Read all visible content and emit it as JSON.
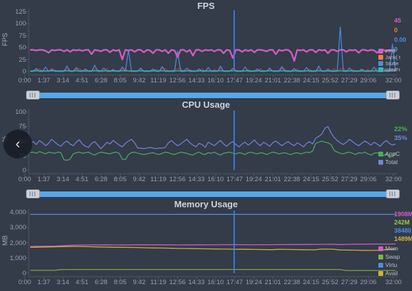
{
  "ui": {
    "back_glyph": "‹"
  },
  "colors": {
    "background": "#343b49",
    "axis": "#4b5468",
    "axis_minor": "#454d5f",
    "tick_text": "#99a1b0",
    "title_text": "#cdd3df",
    "cursor": "#3a7fe8",
    "slider_track": "#56a8ea",
    "slider_handle": "#cdd2da"
  },
  "chart_data": [
    {
      "type": "line",
      "title": "FPS",
      "ylabel": "FPS",
      "ylim": [
        0,
        125
      ],
      "yticks": [
        0,
        25,
        50,
        75,
        100,
        125
      ],
      "ytick_labels": [
        "0",
        "25",
        "50",
        "75",
        "100",
        "125"
      ],
      "x_labels": [
        "0:00",
        "1:37",
        "3:14",
        "4:51",
        "6:28",
        "8:05",
        "9:42",
        "11:19",
        "12:56",
        "14:33",
        "16:10",
        "17:47",
        "19:24",
        "21:01",
        "22:38",
        "24:15",
        "25:52",
        "27:29",
        "29:06",
        "32:00"
      ],
      "cursor_at": "17:47",
      "grid": false,
      "legend_position": "right",
      "readout": [
        {
          "value": "45",
          "color": "#d35fc4"
        },
        {
          "value": "0",
          "color": "#ef8432"
        },
        {
          "value": "0.00",
          "color": "#4a90e2"
        },
        {
          "value": "0",
          "color": "#35b8b4"
        }
      ],
      "legend": [
        {
          "label": "FPS",
          "color": "#d35fc4"
        },
        {
          "label": "Jank[ t",
          "color": "#ef8432"
        },
        {
          "label": "Stutte",
          "color": "#4a8ee8"
        },
        {
          "label": "InterFr",
          "color": "#35b8b4"
        }
      ],
      "series": [
        {
          "name": "Jank",
          "color": "#b5433a",
          "width": 1,
          "values": [
            0,
            0,
            4,
            5,
            0,
            0,
            0,
            6,
            3,
            0,
            0,
            0,
            5,
            0,
            0,
            4,
            6,
            0,
            0,
            0,
            0,
            5,
            4,
            0,
            0,
            6,
            0,
            0,
            0,
            0,
            4,
            6,
            0,
            0,
            0,
            0,
            5,
            0,
            0,
            0,
            0,
            4,
            0,
            5,
            6,
            0,
            0,
            4,
            5,
            6,
            0,
            0,
            4,
            0,
            0,
            0,
            5,
            0,
            0,
            0,
            4,
            0,
            6,
            0,
            0,
            0,
            5,
            3,
            0,
            0,
            0,
            4,
            0,
            0,
            0,
            6,
            0,
            0,
            5,
            0,
            0,
            0,
            6,
            4,
            0,
            0,
            0,
            5,
            0,
            0,
            0,
            4,
            0,
            0,
            5,
            0,
            0,
            0,
            0,
            6,
            0,
            5,
            6,
            0,
            0,
            4,
            0,
            0,
            0,
            0,
            4,
            0,
            0,
            6,
            0,
            0,
            0,
            4,
            5,
            0
          ]
        },
        {
          "name": "Stutter",
          "color": "#4a8ee8",
          "width": 1.2,
          "values": [
            0,
            0,
            6,
            0,
            0,
            9,
            0,
            4,
            0,
            0,
            0,
            0,
            11,
            0,
            0,
            8,
            0,
            0,
            5,
            0,
            0,
            13,
            0,
            0,
            7,
            0,
            0,
            4,
            0,
            0,
            9,
            0,
            45,
            0,
            0,
            0,
            7,
            0,
            0,
            0,
            5,
            0,
            0,
            10,
            0,
            0,
            0,
            0,
            43,
            0,
            0,
            7,
            0,
            0,
            0,
            5,
            0,
            0,
            8,
            0,
            0,
            0,
            11,
            0,
            0,
            0,
            6,
            0,
            0,
            0,
            9,
            0,
            0,
            0,
            5,
            0,
            0,
            0,
            7,
            0,
            0,
            0,
            10,
            0,
            0,
            0,
            6,
            0,
            0,
            0,
            8,
            0,
            0,
            0,
            11,
            0,
            0,
            5,
            0,
            0,
            0,
            93,
            0,
            0,
            7,
            0,
            0,
            0,
            5,
            0,
            0,
            0,
            9,
            0,
            0,
            6,
            0,
            0,
            57,
            0
          ]
        },
        {
          "name": "InterFrame",
          "color": "#38b8b2",
          "width": 1.4,
          "values": [
            1,
            1
          ]
        },
        {
          "name": "FPS",
          "color": "#cf5cc4",
          "width": 2.4,
          "values": [
            45,
            45,
            44,
            45,
            45,
            43,
            39,
            45,
            44,
            45,
            45,
            42,
            45,
            41,
            45,
            44,
            45,
            43,
            45,
            45,
            36,
            45,
            44,
            42,
            45,
            45,
            40,
            45,
            43,
            45,
            25,
            45,
            44,
            45,
            41,
            45,
            45,
            40,
            45,
            44,
            38,
            45,
            45,
            42,
            45,
            38,
            45,
            44,
            30,
            45,
            45,
            41,
            45,
            33,
            45,
            45,
            42,
            45,
            44,
            45,
            42,
            45,
            45,
            38,
            45,
            44,
            28,
            45,
            45,
            41,
            45,
            43,
            45,
            40,
            45,
            45,
            44,
            42,
            45,
            45,
            36,
            45,
            43,
            45,
            45,
            40,
            22,
            45,
            44,
            45,
            41,
            45,
            45,
            40,
            45,
            44,
            45,
            38,
            45,
            45,
            42,
            45,
            45,
            41,
            45,
            44,
            45,
            39,
            45,
            45,
            43,
            45,
            44,
            39,
            45,
            45,
            42,
            45,
            43,
            45
          ]
        }
      ]
    },
    {
      "type": "line",
      "title": "CPU Usage",
      "ylabel": "%",
      "ylim": [
        0,
        100
      ],
      "yticks": [
        0,
        25,
        50,
        75,
        100
      ],
      "ytick_labels": [
        "0",
        "25",
        "50",
        "75",
        "100"
      ],
      "x_labels": [
        "0:00",
        "1:37",
        "3:14",
        "4:51",
        "6:28",
        "8:05",
        "9:42",
        "11:19",
        "12:56",
        "14:33",
        "16:10",
        "17:47",
        "19:24",
        "21:01",
        "22:38",
        "24:15",
        "25:52",
        "27:29",
        "29:06",
        "32:00"
      ],
      "cursor_at": "17:47",
      "grid": false,
      "legend_position": "right",
      "readout": [
        {
          "value": "22%",
          "color": "#4db052"
        },
        {
          "value": "35%",
          "color": "#7286d8"
        }
      ],
      "legend": [
        {
          "label": "AppC",
          "color": "#4db052"
        },
        {
          "label": "Total",
          "color": "#7286d8"
        }
      ],
      "series": [
        {
          "name": "TotalCPU",
          "color": "#7181cf",
          "width": 1.3,
          "values": [
            46,
            49,
            44,
            51,
            47,
            42,
            46,
            53,
            48,
            44,
            41,
            47,
            50,
            45,
            42,
            48,
            52,
            45,
            41,
            39,
            46,
            49,
            43,
            37,
            42,
            48,
            45,
            51,
            47,
            43,
            40,
            46,
            50,
            53,
            47,
            38,
            38,
            37,
            38,
            39,
            38,
            37,
            38,
            38,
            39,
            47,
            51,
            46,
            42,
            45,
            49,
            53,
            47,
            43,
            40,
            46,
            44,
            39,
            48,
            45,
            42,
            47,
            51,
            45,
            41,
            46,
            49,
            44,
            40,
            45,
            48,
            43,
            47,
            52,
            46,
            42,
            48,
            45,
            41,
            47,
            50,
            46,
            42,
            46,
            49,
            45,
            42,
            47,
            44,
            40,
            46,
            49,
            45,
            55,
            58,
            62,
            72,
            75,
            64,
            56,
            51,
            47,
            44,
            48,
            53,
            49,
            45,
            42,
            46,
            50,
            47,
            43,
            48,
            45,
            41,
            47,
            51,
            46,
            43,
            45
          ]
        },
        {
          "name": "AppCPU",
          "color": "#4ea758",
          "width": 1.3,
          "values": [
            30,
            31,
            29,
            32,
            30,
            28,
            31,
            30,
            29,
            31,
            30,
            18,
            17,
            19,
            28,
            30,
            31,
            29,
            30,
            31,
            28,
            26,
            29,
            31,
            30,
            29,
            28,
            30,
            31,
            29,
            19,
            18,
            27,
            30,
            31,
            29,
            28,
            27,
            28,
            29,
            30,
            28,
            27,
            29,
            31,
            30,
            28,
            27,
            29,
            31,
            30,
            29,
            27,
            26,
            29,
            31,
            28,
            27,
            30,
            29,
            31,
            28,
            26,
            29,
            30,
            31,
            29,
            28,
            30,
            29,
            27,
            30,
            31,
            29,
            28,
            30,
            29,
            27,
            29,
            31,
            30,
            28,
            29,
            30,
            28,
            27,
            29,
            30,
            28,
            29,
            31,
            30,
            33,
            46,
            48,
            50,
            48,
            47,
            44,
            34,
            31,
            29,
            28,
            30,
            31,
            29,
            27,
            30,
            29,
            31,
            28,
            26,
            29,
            30,
            27,
            25,
            28,
            22,
            24,
            30
          ]
        }
      ]
    },
    {
      "type": "line",
      "title": "Memory Usage",
      "ylabel": "MB",
      "ylim": [
        0,
        4000
      ],
      "yticks": [
        0,
        1000,
        2000,
        3000,
        4000
      ],
      "ytick_labels": [
        "0",
        "1,000",
        "2,000",
        "3,000",
        "4,000"
      ],
      "x_labels": [
        "0:00",
        "1:37",
        "3:14",
        "4:51",
        "6:28",
        "8:05",
        "9:42",
        "11:19",
        "12:56",
        "14:33",
        "16:10",
        "17:47",
        "19:24",
        "21:01",
        "22:38",
        "24:15",
        "25:52",
        "27:29",
        "29:06",
        "32:00"
      ],
      "cursor_at": "17:47",
      "grid": false,
      "legend_position": "right",
      "readout": [
        {
          "value": "1908M",
          "color": "#d35fc4"
        },
        {
          "value": "242M",
          "color": "#9ccc3f"
        },
        {
          "value": "38480",
          "color": "#4a90e2"
        },
        {
          "value": "1489M",
          "color": "#d4b13c"
        }
      ],
      "legend": [
        {
          "label": "Mem",
          "color": "#d35fc4"
        },
        {
          "label": "Swap",
          "color": "#7cb83e"
        },
        {
          "label": "Virtu",
          "color": "#4a90e2"
        },
        {
          "label": "Avail",
          "color": "#d4b13c"
        }
      ],
      "series": [
        {
          "name": "VirtualMemory",
          "color": "#5b8fd8",
          "width": 1.3,
          "values": [
            3848,
            3848
          ]
        },
        {
          "name": "Memory",
          "color": "#c75fc0",
          "width": 1.3,
          "values": [
            1755,
            1758,
            1762,
            1768,
            1775,
            1795,
            1815,
            1828,
            1838,
            1845,
            1850,
            1852,
            1854,
            1851,
            1849,
            1850,
            1852,
            1855,
            1857,
            1859,
            1858,
            1856,
            1853,
            1851,
            1849,
            1851,
            1853,
            1856,
            1858,
            1860,
            1862,
            1864,
            1866,
            1869,
            1867,
            1864,
            1862,
            1861,
            1863,
            1866,
            1868,
            1870,
            1873,
            1875,
            1878,
            1880,
            1883,
            1886,
            1888,
            1890,
            1872,
            1882,
            1892,
            1896,
            1901,
            1905,
            1908,
            1906,
            1905,
            1908
          ]
        },
        {
          "name": "AvailMemory",
          "color": "#d1ae3c",
          "width": 1.3,
          "values": [
            1688,
            1698,
            1708,
            1718,
            1728,
            1738,
            1744,
            1750,
            1747,
            1739,
            1729,
            1719,
            1709,
            1699,
            1694,
            1689,
            1684,
            1679,
            1669,
            1659,
            1649,
            1644,
            1639,
            1629,
            1619,
            1614,
            1609,
            1599,
            1594,
            1589,
            1584,
            1579,
            1574,
            1569,
            1564,
            1559,
            1554,
            1549,
            1544,
            1539,
            1559,
            1554,
            1549,
            1544,
            1539,
            1534,
            1529,
            1579,
            1574,
            1569,
            1519,
            1509,
            1504,
            1499,
            1494,
            1489,
            1500,
            1529,
            1559,
            1569
          ]
        },
        {
          "name": "SwapMemory",
          "color": "#7ca83c",
          "width": 1.3,
          "values": [
            185,
            185,
            186,
            186,
            188,
            240,
            242,
            242,
            242,
            242,
            242,
            242,
            242,
            242,
            242,
            242,
            242,
            242,
            242,
            242,
            242,
            242,
            242,
            242,
            242,
            242,
            242,
            242,
            242,
            242,
            242,
            242,
            242,
            242,
            242,
            242,
            242,
            242,
            242,
            242,
            242,
            242,
            242,
            242,
            242,
            242,
            242,
            242,
            242,
            242,
            242,
            175,
            174,
            174,
            175,
            175,
            174,
            175,
            175,
            175
          ]
        }
      ]
    }
  ]
}
